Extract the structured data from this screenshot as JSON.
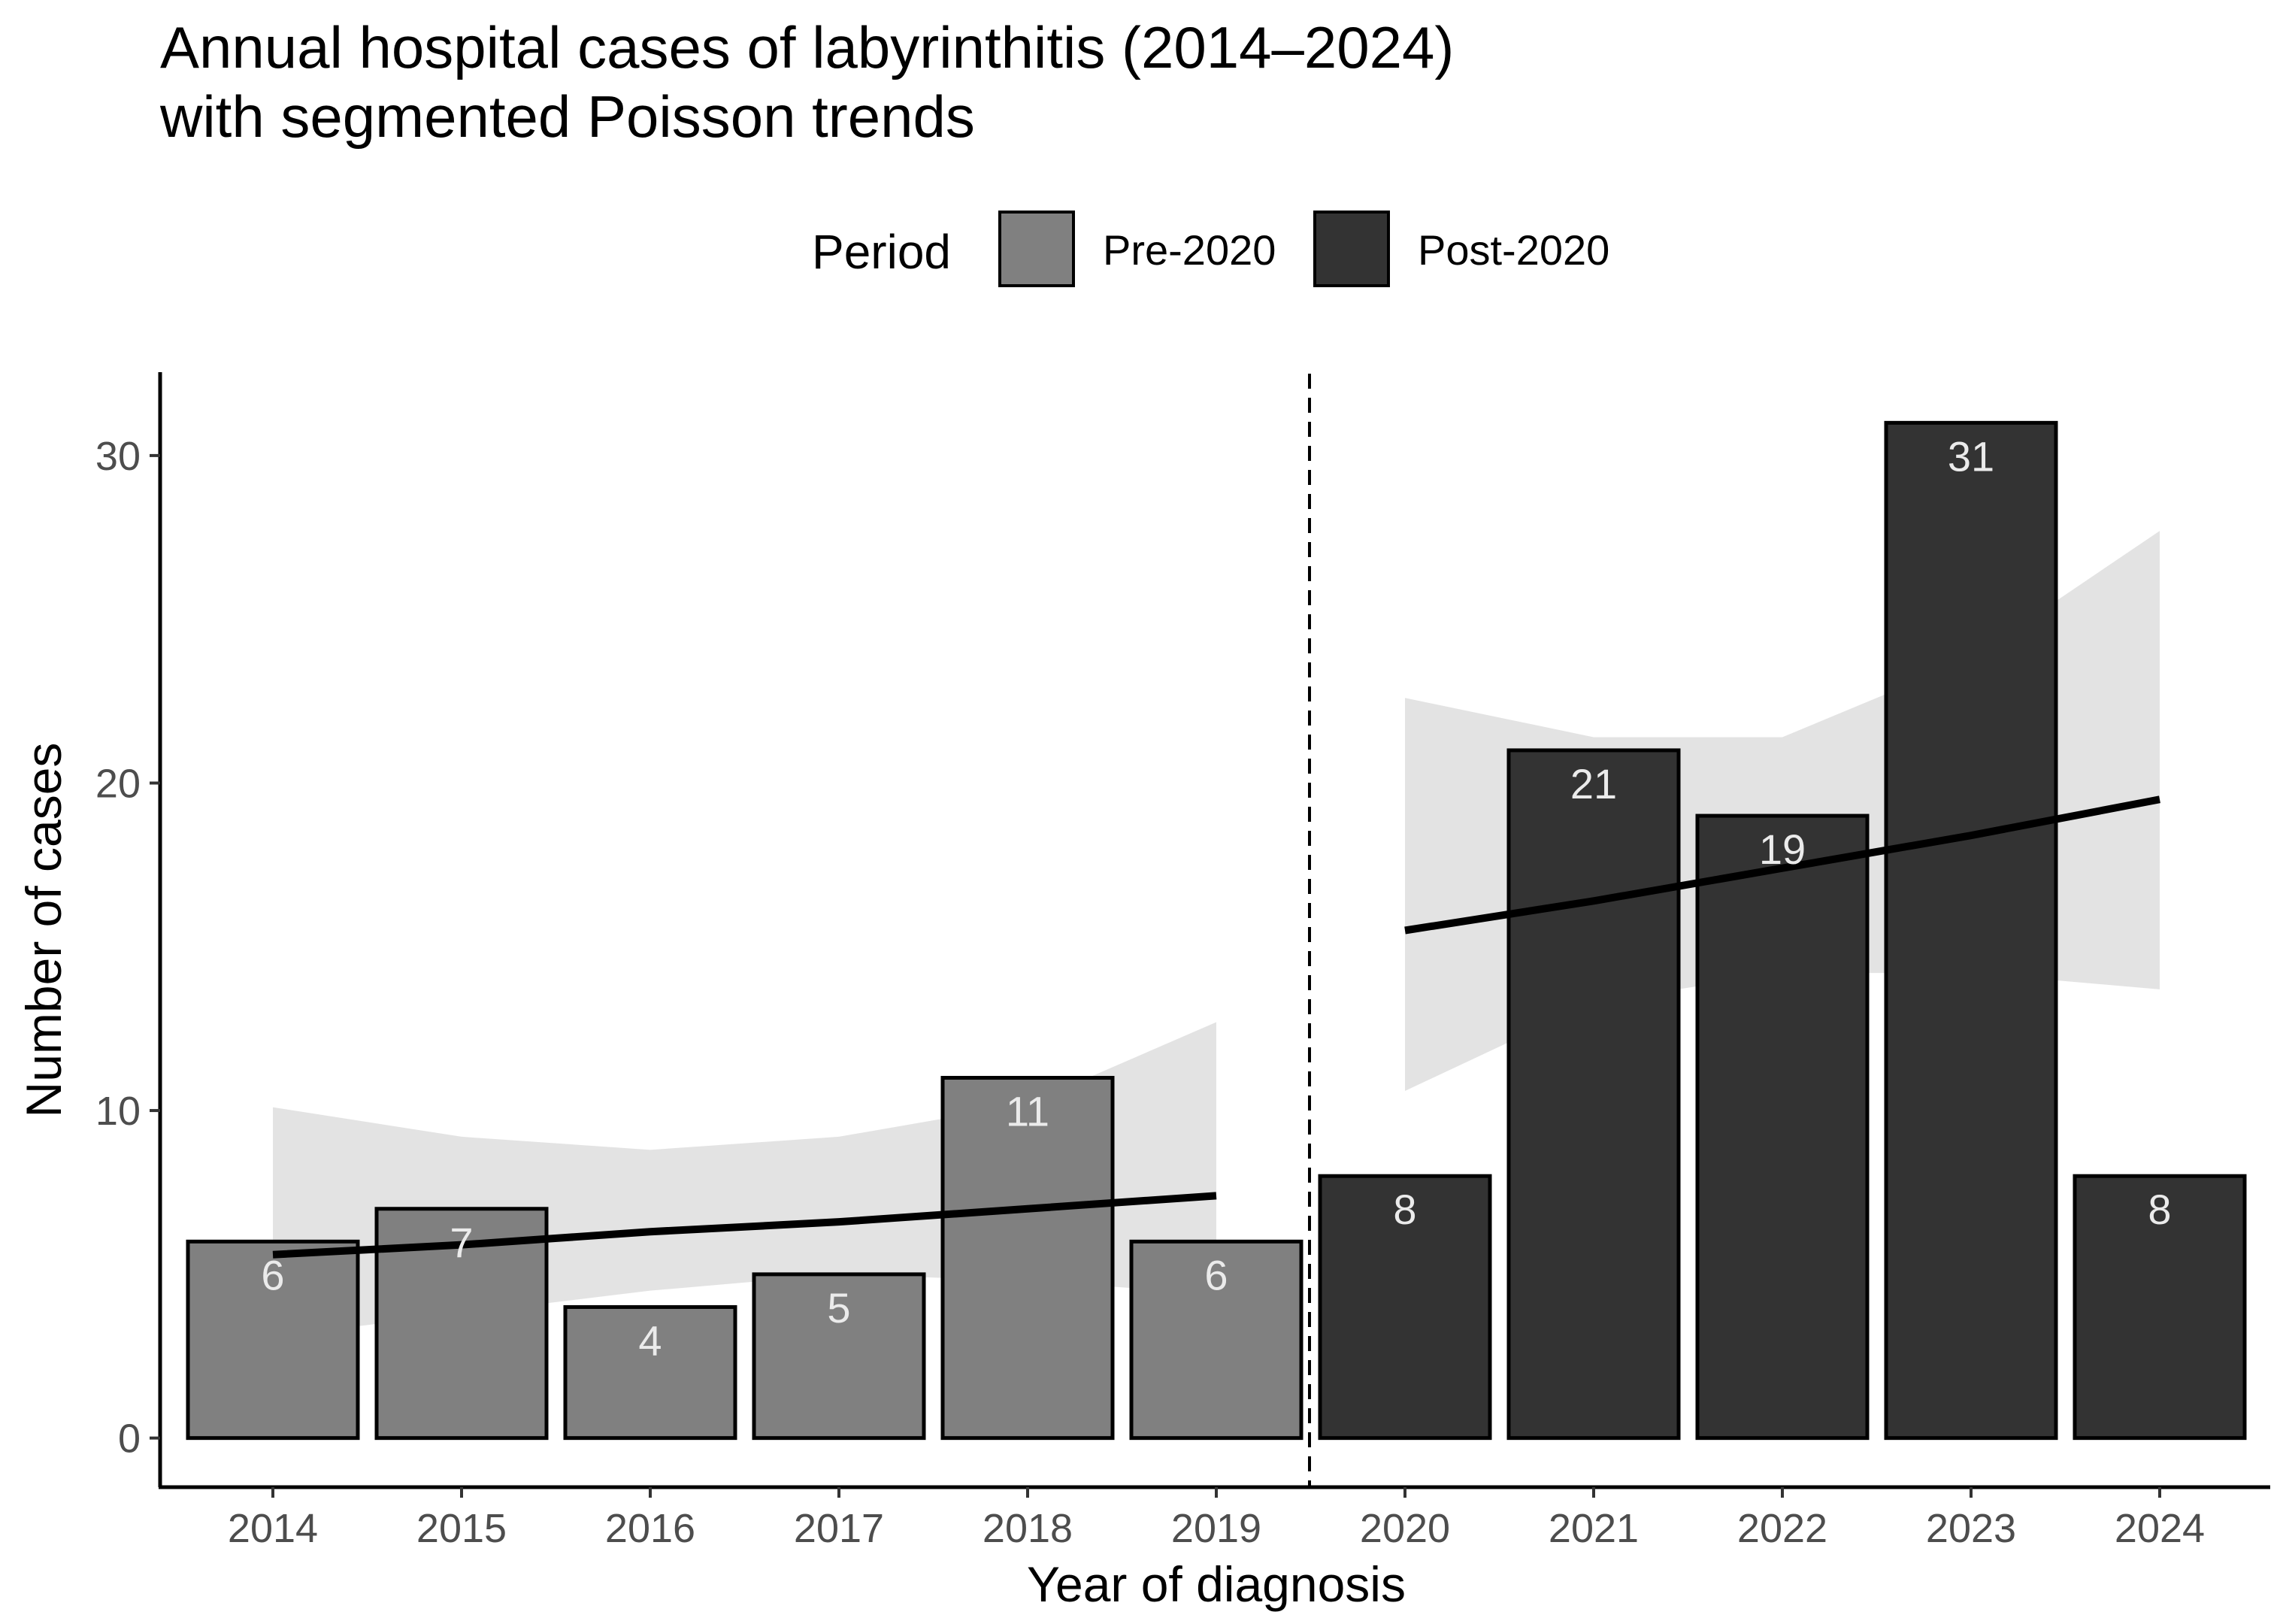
{
  "chart_data": {
    "type": "bar",
    "title_lines": [
      "Annual hospital cases of labyrinthitis (2014–2024)",
      "with segmented Poisson trends"
    ],
    "xlabel": "Year of diagnosis",
    "ylabel": "Number of cases",
    "ylim": [
      -1.5,
      32.5
    ],
    "yticks": [
      0,
      10,
      20,
      30
    ],
    "legend": {
      "title": "Period",
      "position": "top",
      "entries": [
        {
          "name": "Pre-2020",
          "color": "#808080"
        },
        {
          "name": "Post-2020",
          "color": "#333333"
        }
      ]
    },
    "categories": [
      "2014",
      "2015",
      "2016",
      "2017",
      "2018",
      "2019",
      "2020",
      "2021",
      "2022",
      "2023",
      "2024"
    ],
    "values": [
      6,
      7,
      4,
      5,
      11,
      6,
      8,
      21,
      19,
      31,
      8
    ],
    "periods": [
      "Pre-2020",
      "Pre-2020",
      "Pre-2020",
      "Pre-2020",
      "Pre-2020",
      "Pre-2020",
      "Post-2020",
      "Post-2020",
      "Post-2020",
      "Post-2020",
      "Post-2020"
    ],
    "breakpoint_between": [
      "2019",
      "2020"
    ],
    "trend_color": "#000000",
    "band_color": "#d9d9d9",
    "trend_segments": [
      {
        "period": "Pre-2020",
        "years": [
          "2014",
          "2015",
          "2016",
          "2017",
          "2018",
          "2019"
        ],
        "fit": [
          5.6,
          5.9,
          6.3,
          6.6,
          7.0,
          7.4
        ],
        "lower": [
          3.1,
          3.8,
          4.5,
          5.0,
          4.8,
          4.4
        ],
        "upper": [
          10.1,
          9.2,
          8.8,
          9.2,
          10.2,
          12.7
        ]
      },
      {
        "period": "Post-2020",
        "years": [
          "2020",
          "2021",
          "2022",
          "2023",
          "2024"
        ],
        "fit": [
          15.5,
          16.4,
          17.4,
          18.4,
          19.5
        ],
        "lower": [
          10.6,
          13.3,
          14.2,
          14.2,
          13.7
        ],
        "upper": [
          22.6,
          21.4,
          21.4,
          23.8,
          27.7
        ]
      }
    ]
  }
}
